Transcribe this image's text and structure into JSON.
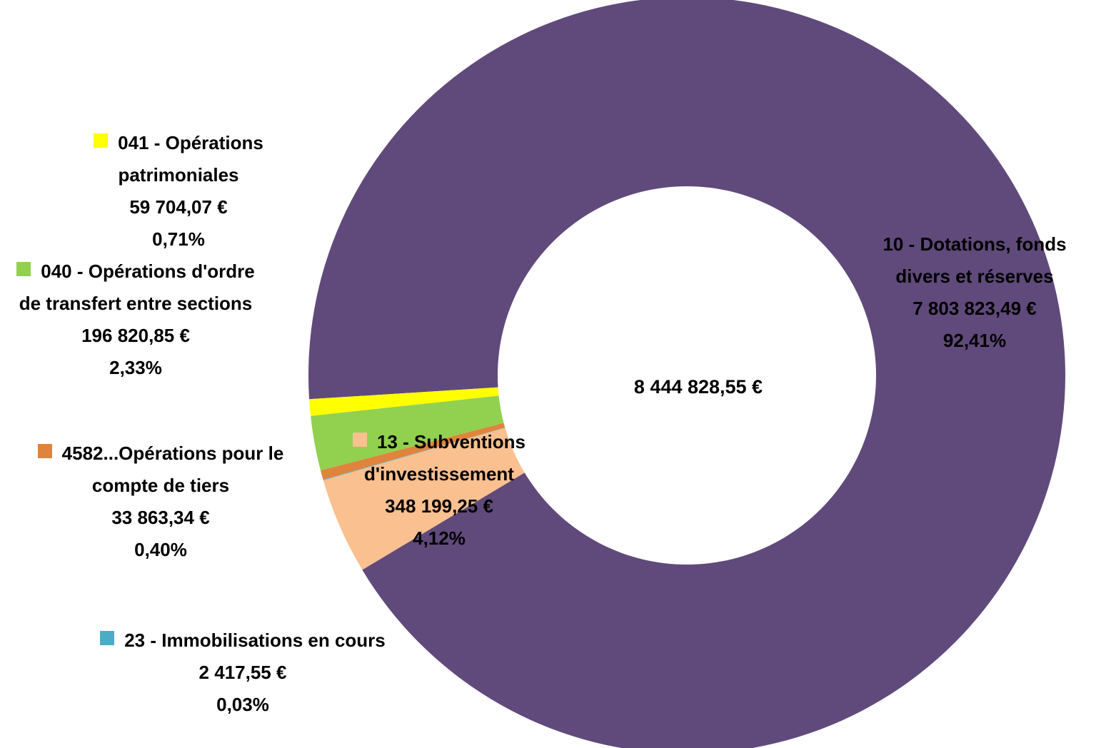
{
  "chart_data": {
    "type": "donut",
    "center_label": "8 444 828,55 €",
    "categories": [
      "10 - Dotations, fonds divers et réserves",
      "13 - Subventions d'investissement",
      "23 - Immobilisations en cours",
      "4582...Opérations pour le compte de tiers",
      "040 - Opérations d'ordre de transfert entre sections",
      "041 - Opérations patrimoniales"
    ],
    "values": [
      7803823.49,
      348199.25,
      2417.55,
      33863.34,
      196820.85,
      59704.07
    ],
    "value_labels": [
      "7 803 823,49 €",
      "348 199,25 €",
      "2 417,55 €",
      "33 863,34 €",
      "196 820,85 €",
      "59 704,07 €"
    ],
    "percent_labels": [
      "92,41%",
      "4,12%",
      "0,03%",
      "0,40%",
      "2,33%",
      "0,71%"
    ],
    "colors": [
      "#604a7b",
      "#fac090",
      "#4bacc6",
      "#e0843c",
      "#92d050",
      "#ffff00"
    ]
  }
}
